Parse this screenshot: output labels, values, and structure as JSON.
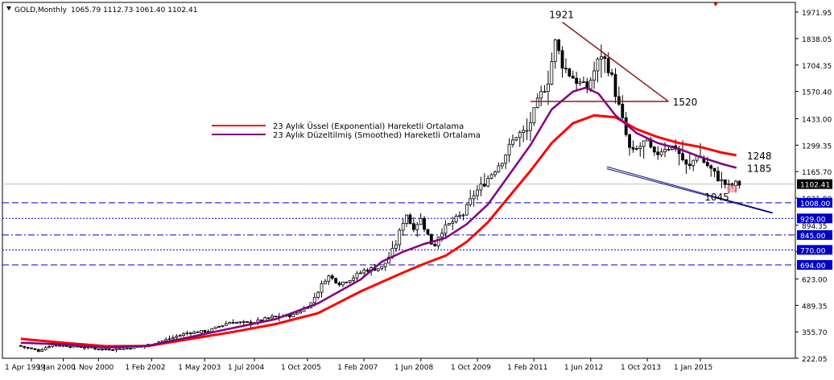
{
  "header": {
    "symbol": "GOLD,Monthly",
    "ohlc": "1065.79 1112.73 1061.40 1102.41"
  },
  "colors": {
    "background": "#ffffff",
    "candle": "#000000",
    "ema": "#ff0000",
    "smma": "#800080",
    "trendline": "#8b1a1a",
    "channel": "#000080",
    "level_line": "#0000cc",
    "price_tag_bg": "#0000cc",
    "current_tag_bg": "#000000"
  },
  "legend": [
    {
      "label": "23 Aylık Üssel (Exponential) Hareketli Ortalama",
      "color": "#ff0000"
    },
    {
      "label": "23 Aylık Düzeltilmiş (Smoothed) Hareketli Ortalama",
      "color": "#800080"
    }
  ],
  "chart_data": {
    "type": "line",
    "title": "GOLD,Monthly",
    "ylim": [
      222,
      1971.95
    ],
    "grid": false,
    "legend_position": "top-left",
    "y_ticks": [
      "1971.95",
      "1838.05",
      "1704.35",
      "1570.40",
      "1433.00",
      "1299.35",
      "1165.70",
      "1031.80",
      "894.35",
      "760.35",
      "623.00",
      "489.35",
      "355.70",
      "222.05"
    ],
    "x_ticks": [
      "1 Apr 1999",
      "1 Jan 2000",
      "1 Nov 2000",
      "1 Feb 2002",
      "1 May 2003",
      "1 Jul 2004",
      "1 Oct 2005",
      "1 Feb 2007",
      "1 Jun 2008",
      "1 Oct 2009",
      "1 Feb 2011",
      "1 Jun 2012",
      "1 Oct 2013",
      "1 Jan 2015"
    ],
    "x_tick_years": [
      1999.25,
      2000.0,
      2000.83,
      2002.08,
      2003.33,
      2004.5,
      2005.75,
      2007.08,
      2008.42,
      2009.75,
      2011.08,
      2012.42,
      2013.75,
      2015.0
    ],
    "price_path": [
      [
        1999.0,
        287
      ],
      [
        1999.5,
        260
      ],
      [
        1999.8,
        290
      ],
      [
        2000.5,
        280
      ],
      [
        2001.0,
        268
      ],
      [
        2001.5,
        270
      ],
      [
        2002.0,
        285
      ],
      [
        2002.5,
        315
      ],
      [
        2003.0,
        350
      ],
      [
        2003.5,
        360
      ],
      [
        2004.0,
        405
      ],
      [
        2004.5,
        400
      ],
      [
        2005.0,
        430
      ],
      [
        2005.5,
        440
      ],
      [
        2005.9,
        495
      ],
      [
        2006.3,
        640
      ],
      [
        2006.6,
        600
      ],
      [
        2006.9,
        630
      ],
      [
        2007.2,
        670
      ],
      [
        2007.6,
        680
      ],
      [
        2007.9,
        790
      ],
      [
        2008.15,
        960
      ],
      [
        2008.3,
        880
      ],
      [
        2008.5,
        925
      ],
      [
        2008.8,
        780
      ],
      [
        2008.95,
        860
      ],
      [
        2009.3,
        920
      ],
      [
        2009.5,
        950
      ],
      [
        2009.75,
        1050
      ],
      [
        2010.0,
        1110
      ],
      [
        2010.4,
        1220
      ],
      [
        2010.75,
        1350
      ],
      [
        2011.0,
        1370
      ],
      [
        2011.3,
        1540
      ],
      [
        2011.5,
        1630
      ],
      [
        2011.67,
        1820
      ],
      [
        2011.85,
        1700
      ],
      [
        2012.0,
        1660
      ],
      [
        2012.2,
        1620
      ],
      [
        2012.4,
        1580
      ],
      [
        2012.75,
        1760
      ],
      [
        2012.95,
        1680
      ],
      [
        2013.25,
        1420
      ],
      [
        2013.45,
        1250
      ],
      [
        2013.8,
        1320
      ],
      [
        2014.0,
        1245
      ],
      [
        2014.25,
        1290
      ],
      [
        2014.5,
        1290
      ],
      [
        2014.8,
        1175
      ],
      [
        2015.0,
        1255
      ],
      [
        2015.3,
        1185
      ],
      [
        2015.55,
        1120
      ],
      [
        2015.75,
        1090
      ],
      [
        2015.92,
        1102.41
      ]
    ],
    "series": [
      {
        "name": "23 Aylık Üssel (Exponential) Hareketli Ortalama",
        "color": "#ff0000",
        "level": 1248,
        "points": [
          [
            1999.0,
            320
          ],
          [
            2000.0,
            300
          ],
          [
            2001.0,
            283
          ],
          [
            2002.0,
            284
          ],
          [
            2003.0,
            320
          ],
          [
            2004.0,
            355
          ],
          [
            2005.0,
            395
          ],
          [
            2006.0,
            450
          ],
          [
            2007.0,
            560
          ],
          [
            2008.0,
            655
          ],
          [
            2008.5,
            700
          ],
          [
            2009.0,
            740
          ],
          [
            2009.5,
            810
          ],
          [
            2010.0,
            910
          ],
          [
            2010.5,
            1040
          ],
          [
            2011.0,
            1170
          ],
          [
            2011.5,
            1310
          ],
          [
            2012.0,
            1410
          ],
          [
            2012.5,
            1450
          ],
          [
            2013.0,
            1440
          ],
          [
            2013.5,
            1380
          ],
          [
            2014.0,
            1340
          ],
          [
            2014.5,
            1310
          ],
          [
            2015.0,
            1290
          ],
          [
            2015.5,
            1262
          ],
          [
            2015.85,
            1248
          ]
        ]
      },
      {
        "name": "23 Aylık Düzeltilmiş (Smoothed) Hareketli Ortalama",
        "color": "#800080",
        "level": 1185,
        "points": [
          [
            1999.0,
            300
          ],
          [
            2000.0,
            292
          ],
          [
            2001.0,
            276
          ],
          [
            2002.0,
            285
          ],
          [
            2003.0,
            330
          ],
          [
            2004.0,
            375
          ],
          [
            2005.0,
            420
          ],
          [
            2006.0,
            500
          ],
          [
            2007.0,
            620
          ],
          [
            2007.5,
            710
          ],
          [
            2008.0,
            760
          ],
          [
            2008.5,
            800
          ],
          [
            2009.0,
            830
          ],
          [
            2009.5,
            900
          ],
          [
            2010.0,
            1000
          ],
          [
            2010.5,
            1150
          ],
          [
            2011.0,
            1300
          ],
          [
            2011.5,
            1480
          ],
          [
            2012.0,
            1570
          ],
          [
            2012.3,
            1590
          ],
          [
            2012.6,
            1560
          ],
          [
            2013.0,
            1450
          ],
          [
            2013.5,
            1360
          ],
          [
            2014.0,
            1310
          ],
          [
            2014.5,
            1280
          ],
          [
            2015.0,
            1240
          ],
          [
            2015.5,
            1205
          ],
          [
            2015.85,
            1185
          ]
        ]
      }
    ],
    "annotations": [
      {
        "label": "1921",
        "year": 2011.67,
        "price": 1921
      },
      {
        "label": "1520",
        "year": 2014.35,
        "price": 1520
      },
      {
        "label": "1248",
        "year": 2016.1,
        "price": 1248
      },
      {
        "label": "1185",
        "year": 2016.1,
        "price": 1185
      },
      {
        "label": "1045",
        "year": 2015.1,
        "price": 1045
      }
    ],
    "trendlines": [
      {
        "name": "triangle-upper",
        "from": [
          2011.75,
          1921
        ],
        "to": [
          2014.25,
          1520
        ]
      },
      {
        "name": "triangle-base",
        "from": [
          2011.0,
          1520
        ],
        "to": [
          2014.25,
          1520
        ]
      },
      {
        "name": "channel-upper",
        "from": [
          2012.8,
          1190
        ],
        "to": [
          2016.7,
          958
        ]
      },
      {
        "name": "channel-lower",
        "from": [
          2012.8,
          1180
        ],
        "to": [
          2016.7,
          955
        ]
      }
    ],
    "horizontal_levels": [
      {
        "value": 1102.41,
        "label": "1102.41",
        "style": "current"
      },
      {
        "value": 1008.0,
        "label": "1008.00",
        "style": "dashed"
      },
      {
        "value": 929.0,
        "label": "929.00",
        "style": "dotted"
      },
      {
        "value": 845.0,
        "label": "845.00",
        "style": "dashdot"
      },
      {
        "value": 770.0,
        "label": "770.00",
        "style": "dotted"
      },
      {
        "value": 694.0,
        "label": "694.00",
        "style": "dashed"
      }
    ]
  }
}
